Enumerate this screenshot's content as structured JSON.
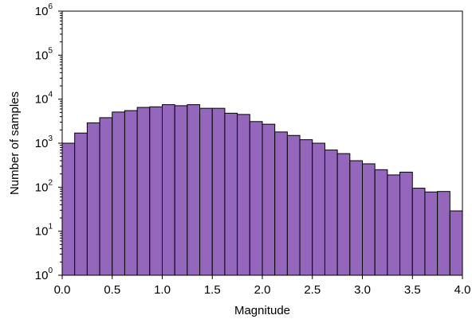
{
  "chart_data": {
    "type": "bar",
    "subtype": "histogram",
    "xlabel": "Magnitude",
    "ylabel": "Number of samples",
    "xlim": [
      0.0,
      4.0
    ],
    "ylim": [
      1,
      1000000
    ],
    "yscale": "log",
    "bin_width": 0.125,
    "bin_edges_start": [
      0.0,
      0.125,
      0.25,
      0.375,
      0.5,
      0.625,
      0.75,
      0.875,
      1.0,
      1.125,
      1.25,
      1.375,
      1.5,
      1.625,
      1.75,
      1.875,
      2.0,
      2.125,
      2.25,
      2.375,
      2.5,
      2.625,
      2.75,
      2.875,
      3.0,
      3.125,
      3.25,
      3.375,
      3.5,
      3.625,
      3.75,
      3.875
    ],
    "values": [
      1000,
      1700,
      2900,
      3800,
      5100,
      5500,
      6500,
      6700,
      7500,
      7100,
      7500,
      6200,
      6200,
      4800,
      4500,
      3100,
      2700,
      1800,
      1500,
      1200,
      1000,
      700,
      580,
      400,
      340,
      250,
      190,
      220,
      95,
      78,
      80,
      29
    ],
    "x_ticks": [
      "0.0",
      "0.5",
      "1.0",
      "1.5",
      "2.0",
      "2.5",
      "3.0",
      "3.5",
      "4.0"
    ],
    "x_tick_values": [
      0.0,
      0.5,
      1.0,
      1.5,
      2.0,
      2.5,
      3.0,
      3.5,
      4.0
    ],
    "y_ticks": [
      {
        "base": "10",
        "exp": "0"
      },
      {
        "base": "10",
        "exp": "1"
      },
      {
        "base": "10",
        "exp": "2"
      },
      {
        "base": "10",
        "exp": "3"
      },
      {
        "base": "10",
        "exp": "4"
      },
      {
        "base": "10",
        "exp": "5"
      },
      {
        "base": "10",
        "exp": "6"
      }
    ],
    "y_tick_values": [
      1,
      10,
      100,
      1000,
      10000,
      100000,
      1000000
    ],
    "grid": false,
    "legend": "none",
    "colors": {
      "bar_fill": "#9467bd",
      "bar_edge": "#000000"
    }
  }
}
